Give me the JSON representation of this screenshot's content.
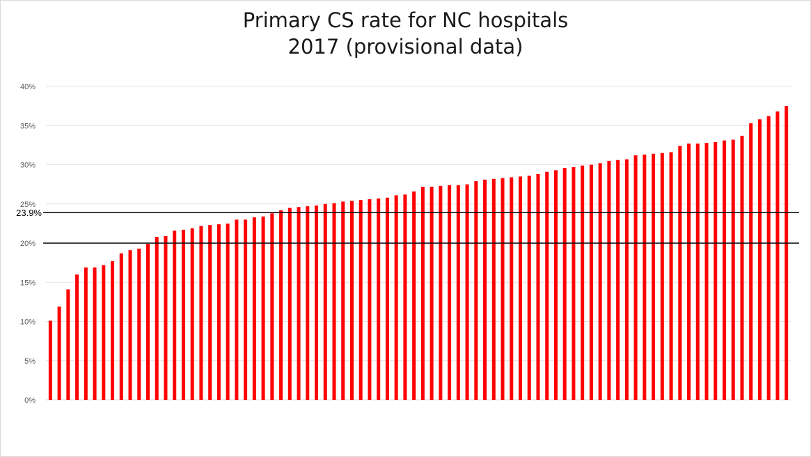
{
  "chart_data": {
    "type": "bar",
    "title": "Primary CS rate for NC hospitals",
    "subtitle": "2017 (provisional data)",
    "xlabel": "",
    "ylabel": "",
    "ylim": [
      0,
      0.4
    ],
    "y_ticks": [
      {
        "value": 0,
        "label": "0%"
      },
      {
        "value": 0.05,
        "label": "5%"
      },
      {
        "value": 0.1,
        "label": "10%"
      },
      {
        "value": 0.15,
        "label": "15%"
      },
      {
        "value": 0.2,
        "label": "20%"
      },
      {
        "value": 0.25,
        "label": "25%"
      },
      {
        "value": 0.3,
        "label": "30%"
      },
      {
        "value": 0.35,
        "label": "35%"
      },
      {
        "value": 0.4,
        "label": "40%"
      }
    ],
    "grid": true,
    "bar_color": "#ff0000",
    "reference_lines": [
      {
        "value": 0.239,
        "label": "23.9%"
      },
      {
        "value": 0.2,
        "label": ""
      }
    ],
    "values": [
      0.101,
      0.119,
      0.141,
      0.16,
      0.169,
      0.169,
      0.172,
      0.177,
      0.187,
      0.191,
      0.193,
      0.199,
      0.208,
      0.209,
      0.216,
      0.217,
      0.219,
      0.222,
      0.223,
      0.224,
      0.225,
      0.23,
      0.23,
      0.233,
      0.234,
      0.238,
      0.242,
      0.245,
      0.246,
      0.247,
      0.248,
      0.25,
      0.251,
      0.253,
      0.254,
      0.255,
      0.256,
      0.257,
      0.258,
      0.261,
      0.262,
      0.266,
      0.272,
      0.272,
      0.273,
      0.274,
      0.274,
      0.275,
      0.279,
      0.281,
      0.282,
      0.283,
      0.284,
      0.285,
      0.286,
      0.288,
      0.291,
      0.293,
      0.296,
      0.297,
      0.299,
      0.3,
      0.302,
      0.305,
      0.306,
      0.307,
      0.312,
      0.313,
      0.314,
      0.315,
      0.316,
      0.324,
      0.327,
      0.327,
      0.328,
      0.329,
      0.331,
      0.332,
      0.337,
      0.353,
      0.358,
      0.362,
      0.368,
      0.375
    ]
  }
}
